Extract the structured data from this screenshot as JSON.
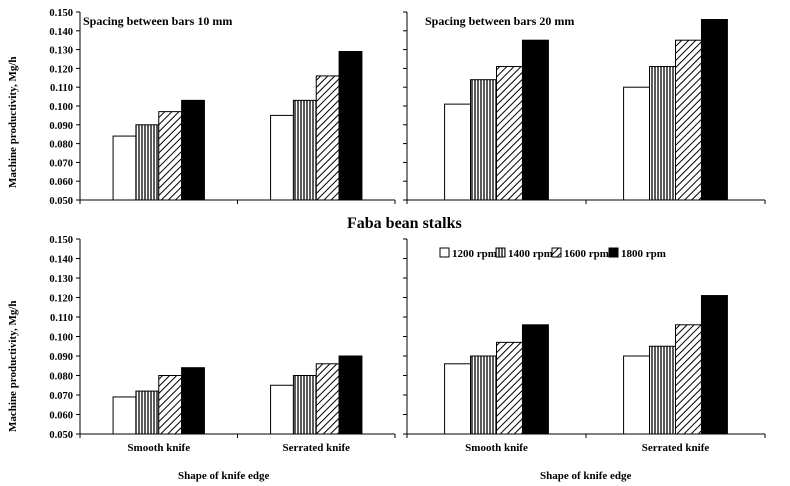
{
  "figure_title": "Faba bean stalks",
  "legend": [
    "1200 rpm",
    "1400 rpm",
    "1600 rpm",
    "1800 rpm"
  ],
  "colors": {
    "series_1200": "#ffffff",
    "series_1800": "#000000",
    "axis": "#000000"
  },
  "chart_data": [
    {
      "type": "bar",
      "title": "Spacing between bars 10 mm",
      "ylabel": "Machine productivity, Mg/h",
      "xlabel": "",
      "ylim": [
        0.05,
        0.15
      ],
      "yticks": [
        "0.050",
        "0.060",
        "0.070",
        "0.080",
        "0.090",
        "0.100",
        "0.110",
        "0.120",
        "0.130",
        "0.140",
        "0.150"
      ],
      "categories": [
        "Smooth knife",
        "Serrated knife"
      ],
      "series": [
        {
          "name": "1200 rpm",
          "values": [
            0.084,
            0.095
          ]
        },
        {
          "name": "1400 rpm",
          "values": [
            0.09,
            0.103
          ]
        },
        {
          "name": "1600 rpm",
          "values": [
            0.097,
            0.116
          ]
        },
        {
          "name": "1800 rpm",
          "values": [
            0.103,
            0.129
          ]
        }
      ]
    },
    {
      "type": "bar",
      "title": "Spacing between bars 20 mm",
      "ylabel": "",
      "xlabel": "",
      "ylim": [
        0.05,
        0.15
      ],
      "yticks": [],
      "categories": [
        "Smooth knife",
        "Serrated knife"
      ],
      "series": [
        {
          "name": "1200 rpm",
          "values": [
            0.101,
            0.11
          ]
        },
        {
          "name": "1400 rpm",
          "values": [
            0.114,
            0.121
          ]
        },
        {
          "name": "1600 rpm",
          "values": [
            0.121,
            0.135
          ]
        },
        {
          "name": "1800 rpm",
          "values": [
            0.135,
            0.146
          ]
        }
      ]
    },
    {
      "type": "bar",
      "title": "",
      "ylabel": "Machine productivity, Mg/h",
      "xlabel": "Shape of knife edge",
      "ylim": [
        0.05,
        0.15
      ],
      "yticks": [
        "0.050",
        "0.060",
        "0.070",
        "0.080",
        "0.090",
        "0.100",
        "0.110",
        "0.120",
        "0.130",
        "0.140",
        "0.150"
      ],
      "categories": [
        "Smooth knife",
        "Serrated knife"
      ],
      "series": [
        {
          "name": "1200 rpm",
          "values": [
            0.069,
            0.075
          ]
        },
        {
          "name": "1400 rpm",
          "values": [
            0.072,
            0.08
          ]
        },
        {
          "name": "1600 rpm",
          "values": [
            0.08,
            0.086
          ]
        },
        {
          "name": "1800 rpm",
          "values": [
            0.084,
            0.09
          ]
        }
      ]
    },
    {
      "type": "bar",
      "title": "",
      "ylabel": "",
      "xlabel": "Shape of knife edge",
      "ylim": [
        0.05,
        0.15
      ],
      "yticks": [],
      "categories": [
        "Smooth knife",
        "Serrated knife"
      ],
      "series": [
        {
          "name": "1200 rpm",
          "values": [
            0.086,
            0.09
          ]
        },
        {
          "name": "1400 rpm",
          "values": [
            0.09,
            0.095
          ]
        },
        {
          "name": "1600 rpm",
          "values": [
            0.097,
            0.106
          ]
        },
        {
          "name": "1800 rpm",
          "values": [
            0.106,
            0.121
          ]
        }
      ]
    }
  ]
}
